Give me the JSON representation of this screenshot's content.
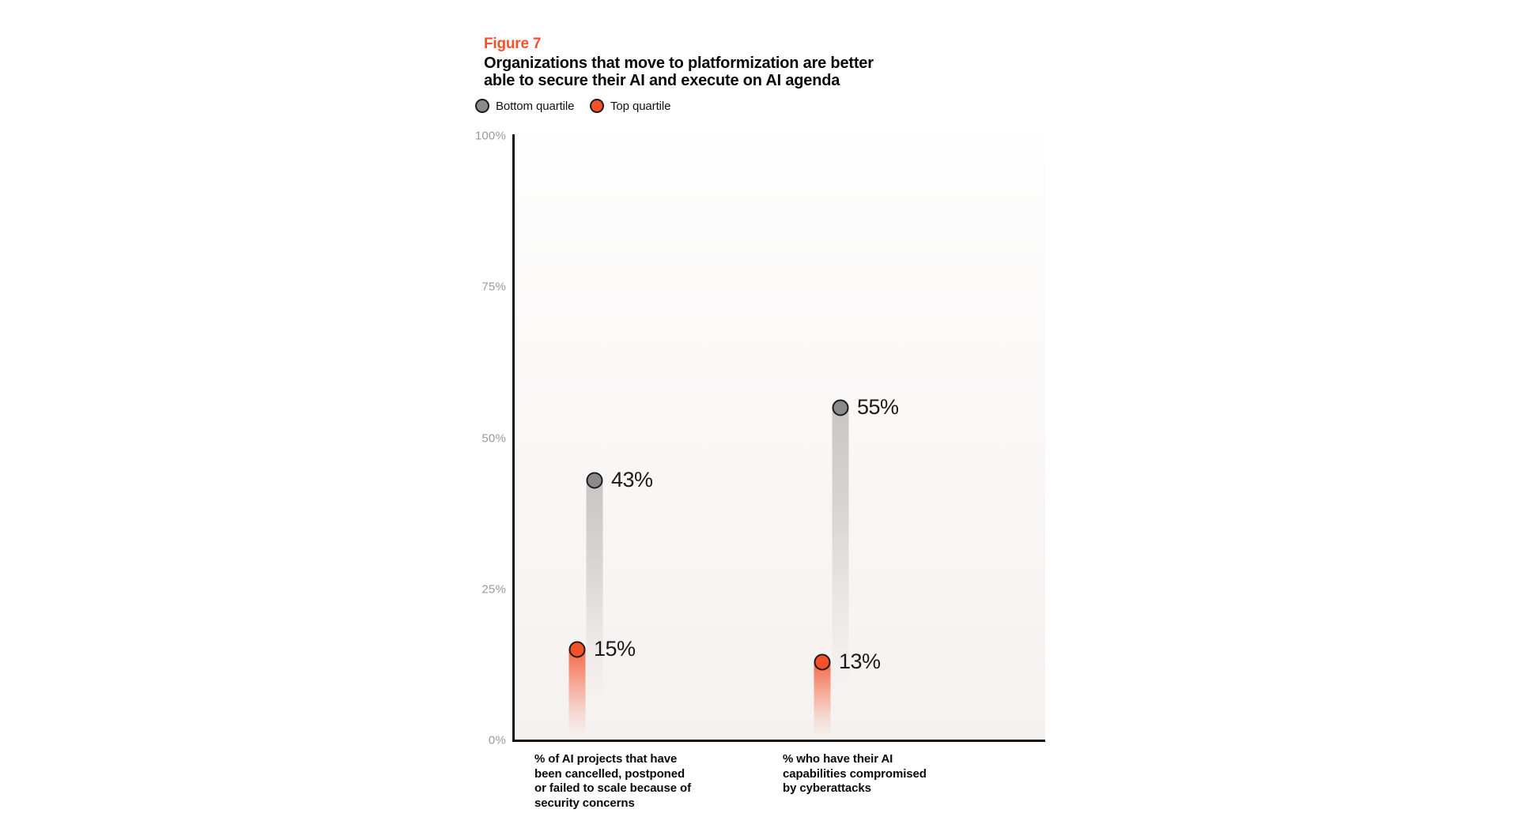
{
  "figure": {
    "label": "Figure 7",
    "title_lines": [
      "Organizations that move to platformization are better",
      "able to secure their AI and execute on AI agenda"
    ]
  },
  "legend": {
    "items": [
      {
        "label": "Bottom quartile",
        "color": "#8a8a8a"
      },
      {
        "label": "Top quartile",
        "color": "#f4512b"
      }
    ]
  },
  "chart_data": {
    "type": "scatter",
    "subtype": "lollipop-dot-plot",
    "title": "Organizations that move to platformization are better able to secure their AI and execute on AI agenda",
    "xlabel": "",
    "ylabel": "",
    "ylim": [
      0,
      100
    ],
    "grid": false,
    "legend_position": "top-left",
    "yticks": [
      {
        "value": 100,
        "label": "100%"
      },
      {
        "value": 75,
        "label": "75%"
      },
      {
        "value": 50,
        "label": "50%"
      },
      {
        "value": 25,
        "label": "25%"
      },
      {
        "value": 0,
        "label": "0%"
      }
    ],
    "categories": [
      "% of AI projects that have been cancelled, postponed or failed to scale because of security concerns",
      "% who have their AI capabilities compromised by cyberattacks"
    ],
    "category_label_lines": [
      [
        "% of AI projects that have",
        "been cancelled, postponed",
        "or failed to scale because of",
        "security concerns"
      ],
      [
        "% who have their AI",
        "capabilities compromised",
        "by cyberattacks"
      ]
    ],
    "series": [
      {
        "name": "Bottom quartile",
        "color": "#8a8a8a",
        "values": [
          43,
          55
        ],
        "value_labels": [
          "43%",
          "55%"
        ]
      },
      {
        "name": "Top quartile",
        "color": "#f4512b",
        "values": [
          15,
          13
        ],
        "value_labels": [
          "15%",
          "13%"
        ]
      }
    ],
    "colors": {
      "axis": "#141414",
      "tick_label": "#9a9a9a",
      "value_label": "#1a1a1a",
      "figure_label": "#f4512b",
      "bottom_quartile": "#8a8a8a",
      "top_quartile": "#f4512b"
    }
  }
}
